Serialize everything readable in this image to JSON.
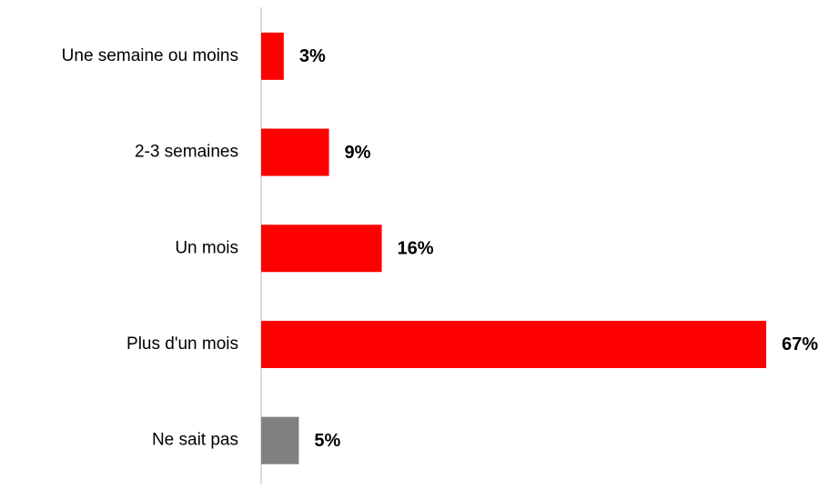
{
  "chart_data": {
    "type": "bar",
    "orientation": "horizontal",
    "categories": [
      "Une semaine ou moins",
      "2-3 semaines",
      "Un mois",
      "Plus d'un mois",
      "Ne sait pas"
    ],
    "values": [
      3,
      9,
      16,
      67,
      5
    ],
    "value_labels": [
      "3%",
      "9%",
      "16%",
      "67%",
      "5%"
    ],
    "colors": [
      "#ff0000",
      "#ff0000",
      "#ff0000",
      "#ff0000",
      "#808080"
    ]
  }
}
